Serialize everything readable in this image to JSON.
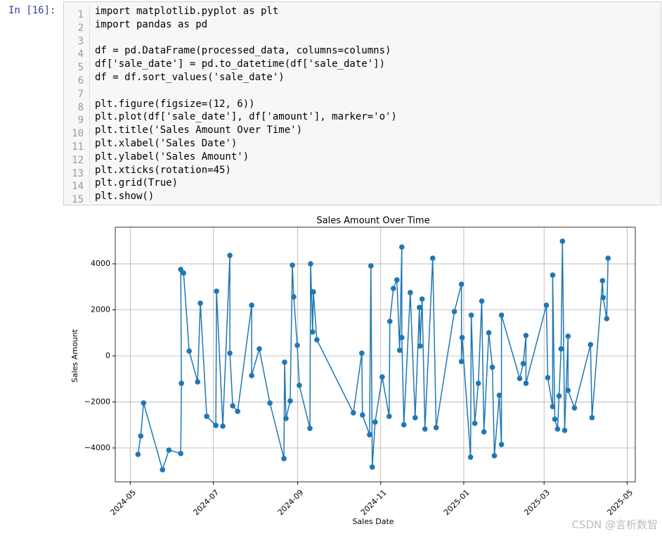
{
  "cell": {
    "prompt": "In [16]:",
    "lines": [
      {
        "number": 1,
        "text": "import matplotlib.pyplot as plt"
      },
      {
        "number": 2,
        "text": "import pandas as pd"
      },
      {
        "number": 3,
        "text": ""
      },
      {
        "number": 4,
        "text": "df = pd.DataFrame(processed_data, columns=columns)"
      },
      {
        "number": 5,
        "text": "df['sale_date'] = pd.to_datetime(df['sale_date'])"
      },
      {
        "number": 6,
        "text": "df = df.sort_values('sale_date')"
      },
      {
        "number": 7,
        "text": ""
      },
      {
        "number": 8,
        "text": "plt.figure(figsize=(12, 6))"
      },
      {
        "number": 9,
        "text": "plt.plot(df['sale_date'], df['amount'], marker='o')"
      },
      {
        "number": 10,
        "text": "plt.title('Sales Amount Over Time')"
      },
      {
        "number": 11,
        "text": "plt.xlabel('Sales Date')"
      },
      {
        "number": 12,
        "text": "plt.ylabel('Sales Amount')"
      },
      {
        "number": 13,
        "text": "plt.xticks(rotation=45)"
      },
      {
        "number": 14,
        "text": "plt.grid(True)"
      },
      {
        "number": 15,
        "text": "plt.show()"
      }
    ]
  },
  "chart_data": {
    "type": "line",
    "title": "Sales Amount Over Time",
    "xlabel": "Sales Date",
    "ylabel": "Sales Amount",
    "color": "#1f77b4",
    "marker": "o",
    "grid": true,
    "x": [
      5.7,
      7.7,
      9.8,
      23.7,
      28.4,
      37.1,
      37.6,
      37.1,
      39.2,
      43.3,
      49.5,
      51.5,
      56.2,
      62.9,
      63.4,
      68.0,
      73.2,
      73.2,
      75.3,
      78.9,
      89.2,
      89.2,
      94.8,
      102.6,
      112.9,
      113.4,
      114.4,
      117.5,
      119.1,
      120.1,
      122.7,
      124.2,
      132.0,
      132.5,
      134.0,
      134.5,
      137.1,
      163.9,
      170.1,
      170.6,
      175.8,
      176.8,
      177.8,
      179.9,
      185.1,
      190.2,
      190.7,
      193.3,
      195.9,
      197.9,
      199.5,
      199.5,
      201.0,
      205.7,
      209.3,
      212.4,
      212.9,
      214.4,
      216.5,
      222.2,
      224.7,
      238.1,
      243.3,
      243.3,
      243.8,
      250.0,
      250.5,
      253.1,
      255.7,
      258.2,
      259.8,
      263.4,
      266.0,
      267.5,
      271.1,
      272.7,
      272.7,
      286.1,
      288.7,
      290.7,
      290.7,
      305.7,
      306.7,
      310.3,
      310.3,
      311.9,
      313.9,
      315.0,
      316.5,
      317.5,
      319.1,
      321.6,
      321.6,
      326.3,
      338.1,
      339.2,
      346.9,
      347.4,
      350.0,
      351.0
    ],
    "values": [
      -4275,
      -3480,
      -2045,
      -4945,
      -4090,
      -4240,
      -1190,
      3755,
      3600,
      210,
      -1130,
      2290,
      -2625,
      -3020,
      2810,
      -3050,
      4365,
      120,
      -2170,
      -2410,
      2200,
      -855,
      305,
      -2045,
      -4460,
      -275,
      -2720,
      -1955,
      3940,
      2565,
      460,
      -1280,
      -3145,
      4000,
      1040,
      2780,
      700,
      -2475,
      120,
      -2565,
      -3420,
      3910,
      -4825,
      -2870,
      -915,
      -2625,
      1500,
      2930,
      3300,
      245,
      4730,
      795,
      -2990,
      2750,
      -2685,
      2105,
      430,
      2470,
      -3175,
      4245,
      -3115,
      1925,
      3115,
      -245,
      795,
      -4400,
      1770,
      -2930,
      -1190,
      2380,
      -3300,
      1005,
      -490,
      -4335,
      -1710,
      -3850,
      1770,
      -980,
      -335,
      885,
      -1190,
      2200,
      -945,
      -2200,
      3510,
      -2750,
      -3175,
      -1740,
      305,
      4980,
      -3235,
      855,
      -1495,
      -2260,
      490,
      -2685,
      3265,
      2535,
      1620,
      4245
    ],
    "xlim": [
      -11,
      371
    ],
    "ylim": [
      -5470,
      5590
    ],
    "xticks": [
      {
        "value": 0,
        "label": "2024-05"
      },
      {
        "value": 61,
        "label": "2024-07"
      },
      {
        "value": 123,
        "label": "2024-09"
      },
      {
        "value": 184,
        "label": "2024-11"
      },
      {
        "value": 245,
        "label": "2025-01"
      },
      {
        "value": 304,
        "label": "2025-03"
      },
      {
        "value": 365,
        "label": "2025-05"
      }
    ],
    "yticks": [
      {
        "value": -4000,
        "label": "−4000"
      },
      {
        "value": -2000,
        "label": "−2000"
      },
      0,
      2000,
      4000
    ]
  },
  "watermark": "CSDN @言析数智"
}
